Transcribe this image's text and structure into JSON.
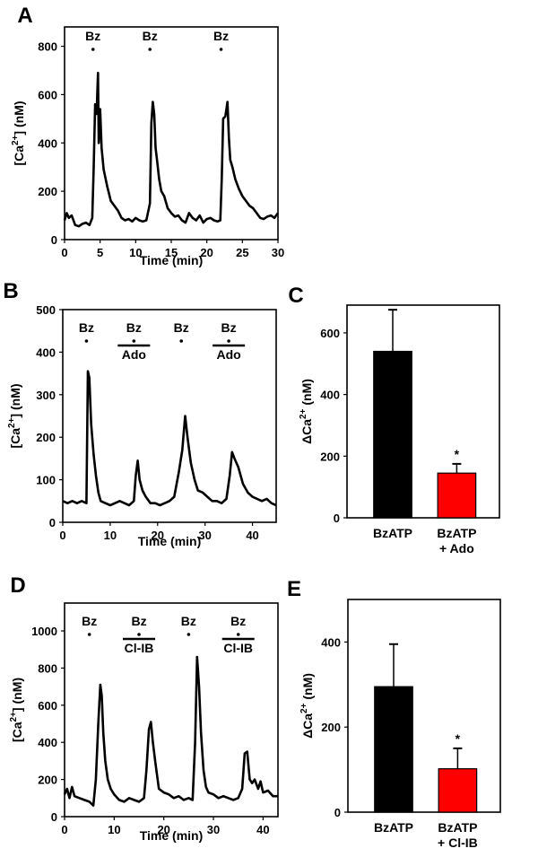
{
  "chart_data": [
    {
      "panel": "A",
      "type": "line",
      "title": "",
      "xlabel": "Time (min)",
      "ylabel": "[Ca2+] (nM)",
      "xlim": [
        0,
        30
      ],
      "ylim": [
        0,
        880
      ],
      "xticks": [
        0,
        5,
        10,
        15,
        20,
        25,
        30
      ],
      "yticks": [
        0,
        200,
        400,
        600,
        800
      ],
      "annotations": [
        {
          "label": "Bz",
          "x": 4,
          "bar": false
        },
        {
          "label": "Bz",
          "x": 12,
          "bar": false
        },
        {
          "label": "Bz",
          "x": 22,
          "bar": false
        }
      ],
      "series": [
        {
          "name": "[Ca2+]",
          "x": [
            0,
            0.3,
            0.6,
            1,
            1.5,
            2,
            2.5,
            3,
            3.5,
            3.9,
            4.1,
            4.3,
            4.5,
            4.7,
            4.8,
            5,
            5.2,
            5.5,
            6,
            6.5,
            7,
            7.5,
            8,
            8.5,
            9,
            9.5,
            10,
            10.5,
            11,
            11.5,
            12,
            12.2,
            12.4,
            12.6,
            12.8,
            13,
            13.3,
            13.6,
            14,
            14.5,
            15,
            15.5,
            16,
            16.5,
            17,
            17.5,
            18,
            18.5,
            19,
            19.5,
            20,
            20.5,
            21,
            21.5,
            21.9,
            22.1,
            22.3,
            22.6,
            22.9,
            23.1,
            23.3,
            23.6,
            24,
            24.5,
            25,
            25.5,
            26,
            26.5,
            27,
            27.5,
            28,
            28.5,
            29,
            29.5,
            30
          ],
          "y": [
            80,
            110,
            90,
            100,
            60,
            55,
            65,
            70,
            60,
            90,
            300,
            560,
            520,
            690,
            400,
            540,
            380,
            290,
            220,
            160,
            140,
            120,
            90,
            80,
            85,
            75,
            90,
            80,
            75,
            80,
            150,
            480,
            570,
            520,
            380,
            330,
            250,
            200,
            180,
            130,
            110,
            95,
            100,
            80,
            70,
            110,
            90,
            80,
            100,
            70,
            85,
            90,
            80,
            75,
            80,
            250,
            500,
            510,
            570,
            420,
            330,
            300,
            250,
            210,
            180,
            160,
            140,
            130,
            110,
            90,
            85,
            95,
            100,
            90,
            110
          ]
        }
      ]
    },
    {
      "panel": "B",
      "type": "line",
      "title": "",
      "xlabel": "Time (min)",
      "ylabel": "[Ca2+] (nM)",
      "xlim": [
        0,
        45
      ],
      "ylim": [
        0,
        500
      ],
      "xticks": [
        0,
        10,
        20,
        30,
        40
      ],
      "yticks": [
        0,
        100,
        200,
        300,
        400,
        500
      ],
      "annotations": [
        {
          "label": "Bz",
          "x": 5,
          "bar": false,
          "sublabel": ""
        },
        {
          "label": "Bz",
          "x": 15,
          "bar": true,
          "sublabel": "Ado"
        },
        {
          "label": "Bz",
          "x": 25,
          "bar": false,
          "sublabel": ""
        },
        {
          "label": "Bz",
          "x": 35,
          "bar": true,
          "sublabel": "Ado"
        }
      ],
      "series": [
        {
          "name": "[Ca2+]",
          "x": [
            0,
            1,
            2,
            3,
            4,
            5,
            5.3,
            5.6,
            6,
            6.5,
            7,
            7.5,
            8,
            9,
            10,
            11,
            12,
            13,
            14,
            15,
            15.4,
            15.8,
            16.2,
            16.8,
            17.5,
            18.5,
            19.5,
            20.5,
            21.5,
            22.5,
            23.5,
            24.5,
            25.2,
            25.8,
            26.3,
            27,
            27.8,
            28.5,
            29.5,
            30.5,
            31.5,
            32.5,
            33.5,
            34.5,
            35.2,
            35.7,
            36.2,
            37,
            38,
            39,
            40,
            41,
            42,
            43,
            44,
            45
          ],
          "y": [
            50,
            45,
            50,
            45,
            50,
            45,
            355,
            340,
            230,
            160,
            110,
            70,
            50,
            45,
            40,
            45,
            50,
            45,
            40,
            50,
            110,
            145,
            100,
            75,
            60,
            45,
            45,
            40,
            45,
            50,
            60,
            120,
            170,
            250,
            200,
            140,
            100,
            75,
            70,
            60,
            50,
            50,
            45,
            55,
            110,
            165,
            150,
            130,
            90,
            70,
            60,
            55,
            50,
            55,
            45,
            40
          ]
        }
      ]
    },
    {
      "panel": "C",
      "type": "bar",
      "title": "",
      "xlabel": "",
      "ylabel": "ΔCa2+ (nM)",
      "ylim": [
        0,
        690
      ],
      "yticks": [
        0,
        200,
        400,
        600
      ],
      "categories": [
        "BzATP",
        "BzATP\n+ Ado"
      ],
      "category_lines": [
        [
          "BzATP"
        ],
        [
          "BzATP",
          "+ Ado"
        ]
      ],
      "values": [
        540,
        145
      ],
      "errors": [
        135,
        30
      ],
      "colors": [
        "#000000",
        "#ff0000"
      ],
      "significance": [
        "",
        "*"
      ]
    },
    {
      "panel": "D",
      "type": "line",
      "title": "",
      "xlabel": "Time (min)",
      "ylabel": "[Ca2+] (nM)",
      "xlim": [
        0,
        43
      ],
      "ylim": [
        0,
        1150
      ],
      "xticks": [
        0,
        10,
        20,
        30,
        40
      ],
      "yticks": [
        0,
        200,
        400,
        600,
        800,
        1000
      ],
      "annotations": [
        {
          "label": "Bz",
          "x": 5,
          "bar": false,
          "sublabel": ""
        },
        {
          "label": "Bz",
          "x": 15,
          "bar": true,
          "sublabel": "Cl-IB"
        },
        {
          "label": "Bz",
          "x": 25,
          "bar": false,
          "sublabel": ""
        },
        {
          "label": "Bz",
          "x": 35,
          "bar": true,
          "sublabel": "Cl-IB"
        }
      ],
      "series": [
        {
          "name": "[Ca2+]",
          "x": [
            0,
            0.5,
            1,
            1.5,
            2,
            3,
            4,
            5,
            5.8,
            6.3,
            6.8,
            7.2,
            7.5,
            7.8,
            8.2,
            8.7,
            9.3,
            10,
            11,
            12,
            13,
            14,
            15,
            16,
            16.5,
            17,
            17.4,
            17.8,
            18.3,
            19,
            20,
            21,
            22,
            23,
            24,
            25,
            25.8,
            26.3,
            26.7,
            27.1,
            27.5,
            28,
            28.5,
            29,
            30,
            31,
            32,
            33,
            34,
            35,
            35.8,
            36.3,
            36.8,
            37.3,
            37.8,
            38.3,
            39,
            39.5,
            40,
            41,
            42,
            43
          ],
          "y": [
            120,
            150,
            100,
            160,
            110,
            100,
            90,
            80,
            60,
            200,
            500,
            710,
            650,
            450,
            300,
            200,
            150,
            120,
            90,
            80,
            100,
            90,
            80,
            100,
            250,
            470,
            510,
            400,
            290,
            150,
            130,
            120,
            100,
            110,
            90,
            100,
            90,
            400,
            860,
            700,
            450,
            250,
            160,
            130,
            120,
            100,
            110,
            100,
            90,
            100,
            150,
            340,
            350,
            200,
            180,
            200,
            150,
            190,
            130,
            140,
            110,
            110
          ]
        }
      ]
    },
    {
      "panel": "E",
      "type": "bar",
      "title": "",
      "xlabel": "",
      "ylabel": "ΔCa2+ (nM)",
      "ylim": [
        0,
        500
      ],
      "yticks": [
        0,
        200,
        400
      ],
      "categories": [
        "BzATP",
        "BzATP\n+ Cl-IB"
      ],
      "category_lines": [
        [
          "BzATP"
        ],
        [
          "BzATP",
          "+ Cl-IB"
        ]
      ],
      "values": [
        295,
        102
      ],
      "errors": [
        100,
        48
      ],
      "colors": [
        "#000000",
        "#ff0000"
      ],
      "significance": [
        "",
        "*"
      ]
    }
  ]
}
